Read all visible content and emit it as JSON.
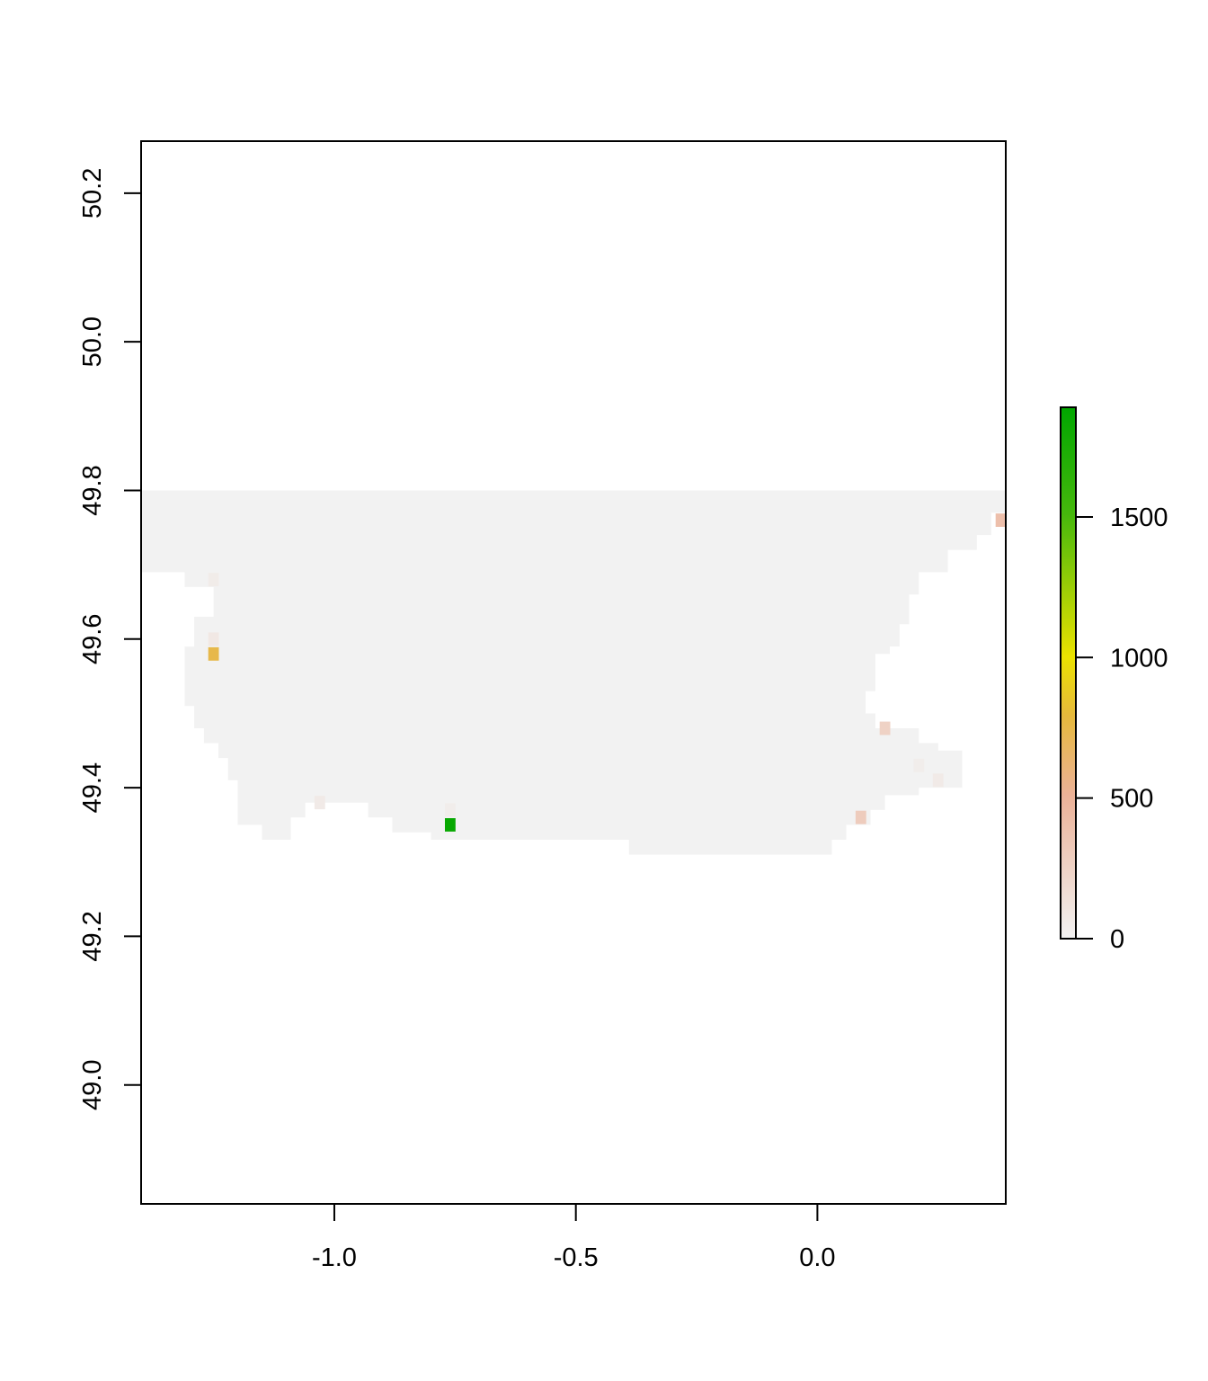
{
  "chart_data": {
    "type": "heatmap",
    "title": "",
    "xlabel": "",
    "ylabel": "",
    "xlim": [
      -1.4,
      0.39
    ],
    "ylim": [
      48.84,
      50.27
    ],
    "x_ticks": [
      {
        "value": -1.0,
        "label": "-1.0"
      },
      {
        "value": -0.5,
        "label": "-0.5"
      },
      {
        "value": 0.0,
        "label": "0.0"
      }
    ],
    "y_ticks": [
      {
        "value": 49.0,
        "label": "49.0"
      },
      {
        "value": 49.2,
        "label": "49.2"
      },
      {
        "value": 49.4,
        "label": "49.4"
      },
      {
        "value": 49.6,
        "label": "49.6"
      },
      {
        "value": 49.8,
        "label": "49.8"
      },
      {
        "value": 50.0,
        "label": "50.0"
      },
      {
        "value": 50.2,
        "label": "50.2"
      }
    ],
    "background_value": 0,
    "outline": [
      [
        -1.4,
        49.8
      ],
      [
        0.39,
        49.8
      ],
      [
        0.39,
        49.77
      ],
      [
        0.36,
        49.77
      ],
      [
        0.36,
        49.74
      ],
      [
        0.33,
        49.74
      ],
      [
        0.33,
        49.72
      ],
      [
        0.27,
        49.72
      ],
      [
        0.27,
        49.69
      ],
      [
        0.21,
        49.69
      ],
      [
        0.21,
        49.66
      ],
      [
        0.19,
        49.66
      ],
      [
        0.19,
        49.62
      ],
      [
        0.17,
        49.62
      ],
      [
        0.17,
        49.59
      ],
      [
        0.15,
        49.59
      ],
      [
        0.15,
        49.58
      ],
      [
        0.12,
        49.58
      ],
      [
        0.12,
        49.53
      ],
      [
        0.1,
        49.53
      ],
      [
        0.1,
        49.5
      ],
      [
        0.12,
        49.5
      ],
      [
        0.12,
        49.48
      ],
      [
        0.21,
        49.48
      ],
      [
        0.21,
        49.46
      ],
      [
        0.25,
        49.46
      ],
      [
        0.25,
        49.45
      ],
      [
        0.3,
        49.45
      ],
      [
        0.3,
        49.4
      ],
      [
        0.21,
        49.4
      ],
      [
        0.21,
        49.39
      ],
      [
        0.14,
        49.39
      ],
      [
        0.14,
        49.37
      ],
      [
        0.11,
        49.37
      ],
      [
        0.11,
        49.35
      ],
      [
        0.06,
        49.35
      ],
      [
        0.06,
        49.33
      ],
      [
        0.03,
        49.33
      ],
      [
        0.03,
        49.31
      ],
      [
        -0.39,
        49.31
      ],
      [
        -0.39,
        49.33
      ],
      [
        -0.8,
        49.33
      ],
      [
        -0.8,
        49.34
      ],
      [
        -0.88,
        49.34
      ],
      [
        -0.88,
        49.36
      ],
      [
        -0.93,
        49.36
      ],
      [
        -0.93,
        49.38
      ],
      [
        -1.06,
        49.38
      ],
      [
        -1.06,
        49.36
      ],
      [
        -1.09,
        49.36
      ],
      [
        -1.09,
        49.33
      ],
      [
        -1.15,
        49.33
      ],
      [
        -1.15,
        49.35
      ],
      [
        -1.2,
        49.35
      ],
      [
        -1.2,
        49.41
      ],
      [
        -1.22,
        49.41
      ],
      [
        -1.22,
        49.44
      ],
      [
        -1.24,
        49.44
      ],
      [
        -1.24,
        49.46
      ],
      [
        -1.27,
        49.46
      ],
      [
        -1.27,
        49.48
      ],
      [
        -1.29,
        49.48
      ],
      [
        -1.29,
        49.51
      ],
      [
        -1.31,
        49.51
      ],
      [
        -1.31,
        49.59
      ],
      [
        -1.29,
        49.59
      ],
      [
        -1.29,
        49.63
      ],
      [
        -1.25,
        49.63
      ],
      [
        -1.25,
        49.67
      ],
      [
        -1.31,
        49.67
      ],
      [
        -1.31,
        49.69
      ],
      [
        -1.4,
        49.69
      ]
    ],
    "cells": [
      {
        "x": -1.25,
        "y": 49.58,
        "value": 750
      },
      {
        "x": -0.76,
        "y": 49.35,
        "value": 1850
      },
      {
        "x": 0.09,
        "y": 49.36,
        "value": 300
      },
      {
        "x": 0.14,
        "y": 49.48,
        "value": 250
      },
      {
        "x": 0.38,
        "y": 49.76,
        "value": 400
      },
      {
        "x": -1.25,
        "y": 49.6,
        "value": 80
      },
      {
        "x": -1.25,
        "y": 49.68,
        "value": 50
      },
      {
        "x": -1.03,
        "y": 49.38,
        "value": 60
      },
      {
        "x": -0.76,
        "y": 49.37,
        "value": 40
      },
      {
        "x": 0.25,
        "y": 49.41,
        "value": 60
      },
      {
        "x": 0.21,
        "y": 49.43,
        "value": 40
      }
    ],
    "cell_size": [
      0.022,
      0.018
    ],
    "legend": {
      "position": "right",
      "min": 0,
      "max": 1890,
      "ticks": [
        {
          "value": 0,
          "label": "0"
        },
        {
          "value": 500,
          "label": "500"
        },
        {
          "value": 1000,
          "label": "1000"
        },
        {
          "value": 1500,
          "label": "1500"
        }
      ],
      "colors": [
        {
          "stop": 0,
          "color": "#f2f2f2"
        },
        {
          "stop": 0.27,
          "color": "#ebb197"
        },
        {
          "stop": 0.42,
          "color": "#e6b93c"
        },
        {
          "stop": 0.53,
          "color": "#ebe200"
        },
        {
          "stop": 0.8,
          "color": "#45b80c"
        },
        {
          "stop": 1,
          "color": "#00a600"
        }
      ]
    }
  }
}
